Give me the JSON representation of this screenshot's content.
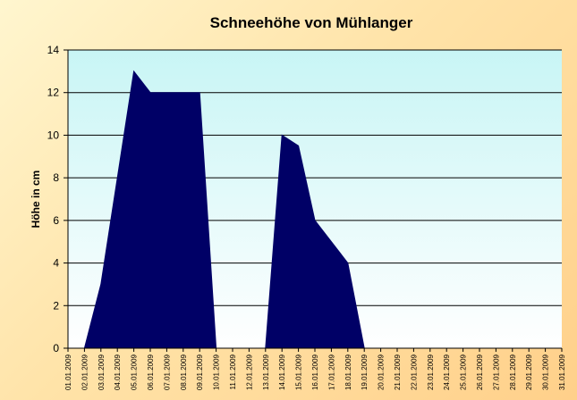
{
  "chart_data": {
    "type": "area",
    "title": "Schneehöhe von Mühlanger",
    "ylabel": "Höhe in cm",
    "xlabel": "",
    "ylim": [
      0,
      14
    ],
    "yticks": [
      "0",
      "2",
      "4",
      "6",
      "8",
      "10",
      "12",
      "14"
    ],
    "grid": true,
    "legend": "none",
    "colors": {
      "area_fill": "#000066",
      "plot_background_top": "#c8f5f5",
      "plot_background_bottom": "#ffffff",
      "gridline": "#000000"
    },
    "categories": [
      "01.01.2009",
      "02.01.2009",
      "03.01.2009",
      "04.01.2009",
      "05.01.2009",
      "06.01.2009",
      "07.01.2009",
      "08.01.2009",
      "09.01.2009",
      "10.01.2009",
      "11.01.2009",
      "12.01.2009",
      "13.01.2009",
      "14.01.2009",
      "15.01.2009",
      "16.01.2009",
      "17.01.2009",
      "18.01.2009",
      "19.01.2009",
      "20.01.2009",
      "21.01.2009",
      "22.01.2009",
      "23.01.2009",
      "24.01.2009",
      "25.01.2009",
      "26.01.2009",
      "27.01.2009",
      "28.01.2009",
      "29.01.2009",
      "30.01.2009",
      "31.01.2009"
    ],
    "series": [
      {
        "values": [
          0,
          0,
          3,
          8,
          13,
          12,
          12,
          12,
          12,
          0,
          0,
          0,
          0,
          10,
          9.5,
          6,
          5,
          4,
          0,
          0,
          0,
          0,
          0,
          0,
          0,
          0,
          0,
          0,
          0,
          0,
          0
        ]
      }
    ]
  }
}
